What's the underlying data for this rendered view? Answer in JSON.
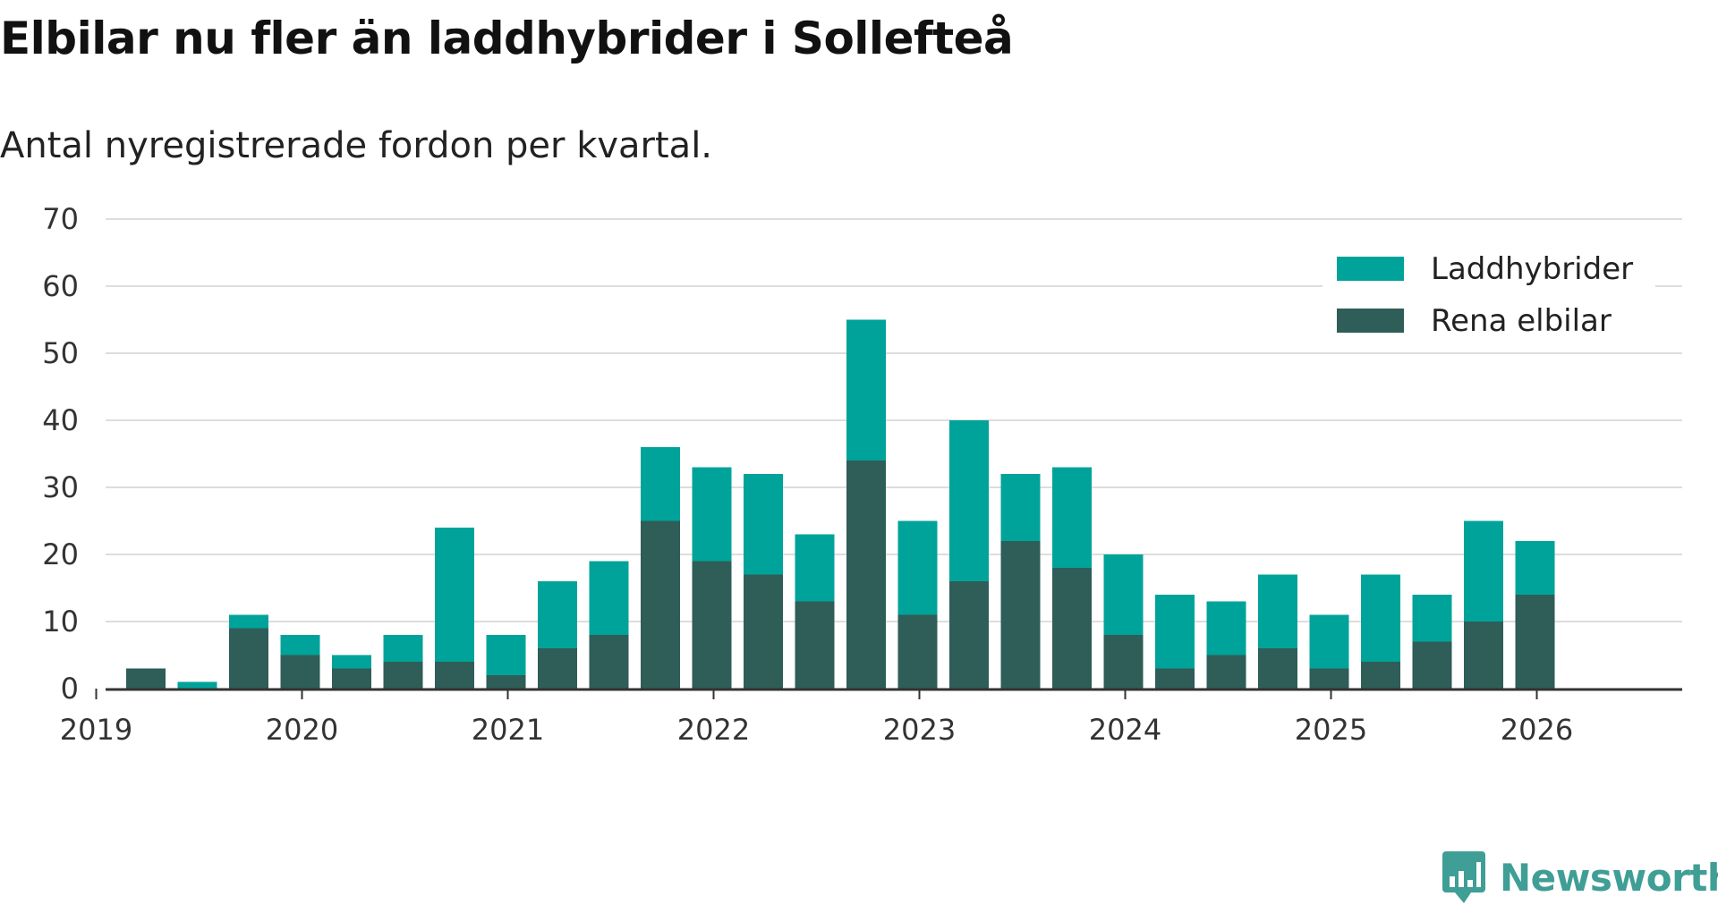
{
  "header": {
    "title": "Elbilar nu fler än laddhybrider i Sollefteå",
    "subtitle": "Antal nyregistrerade fordon per kvartal."
  },
  "brand": {
    "name": "Newsworthy",
    "logo_icon": "bar-chart-speech-icon",
    "color": "#3f9e95"
  },
  "chart_data": {
    "type": "bar",
    "stacked": true,
    "title": "Elbilar nu fler än laddhybrider i Sollefteå",
    "subtitle": "Antal nyregistrerade fordon per kvartal.",
    "xlabel": "",
    "ylabel": "",
    "ylim": [
      0,
      70
    ],
    "yticks": [
      0,
      10,
      20,
      30,
      40,
      50,
      60,
      70
    ],
    "xticks": [
      "2019",
      "2020",
      "2021",
      "2022",
      "2023",
      "2024",
      "2025",
      "2026"
    ],
    "grid": true,
    "legend_position": "top-right",
    "categories": [
      "2019 Q1",
      "2019 Q2",
      "2019 Q3",
      "2019 Q4",
      "2020 Q1",
      "2020 Q2",
      "2020 Q3",
      "2020 Q4",
      "2021 Q1",
      "2021 Q2",
      "2021 Q3",
      "2021 Q4",
      "2022 Q1",
      "2022 Q2",
      "2022 Q3",
      "2022 Q4",
      "2023 Q1",
      "2023 Q2",
      "2023 Q3",
      "2023 Q4",
      "2024 Q1",
      "2024 Q2",
      "2024 Q3",
      "2024 Q4",
      "2025 Q1",
      "2025 Q2",
      "2025 Q3",
      "2025 Q4"
    ],
    "series": [
      {
        "name": "Rena elbilar",
        "color": "#2f5d57",
        "values": [
          3,
          0,
          9,
          5,
          3,
          4,
          4,
          2,
          6,
          8,
          25,
          19,
          17,
          13,
          34,
          11,
          16,
          22,
          18,
          8,
          3,
          5,
          6,
          3,
          4,
          7,
          10,
          14
        ]
      },
      {
        "name": "Laddhybrider",
        "color": "#00a39a",
        "values": [
          0,
          1,
          2,
          3,
          2,
          4,
          20,
          6,
          10,
          11,
          11,
          14,
          15,
          10,
          21,
          14,
          24,
          10,
          15,
          12,
          11,
          8,
          11,
          8,
          13,
          7,
          15,
          8
        ]
      }
    ],
    "legend_order": [
      "Laddhybrider",
      "Rena elbilar"
    ]
  }
}
